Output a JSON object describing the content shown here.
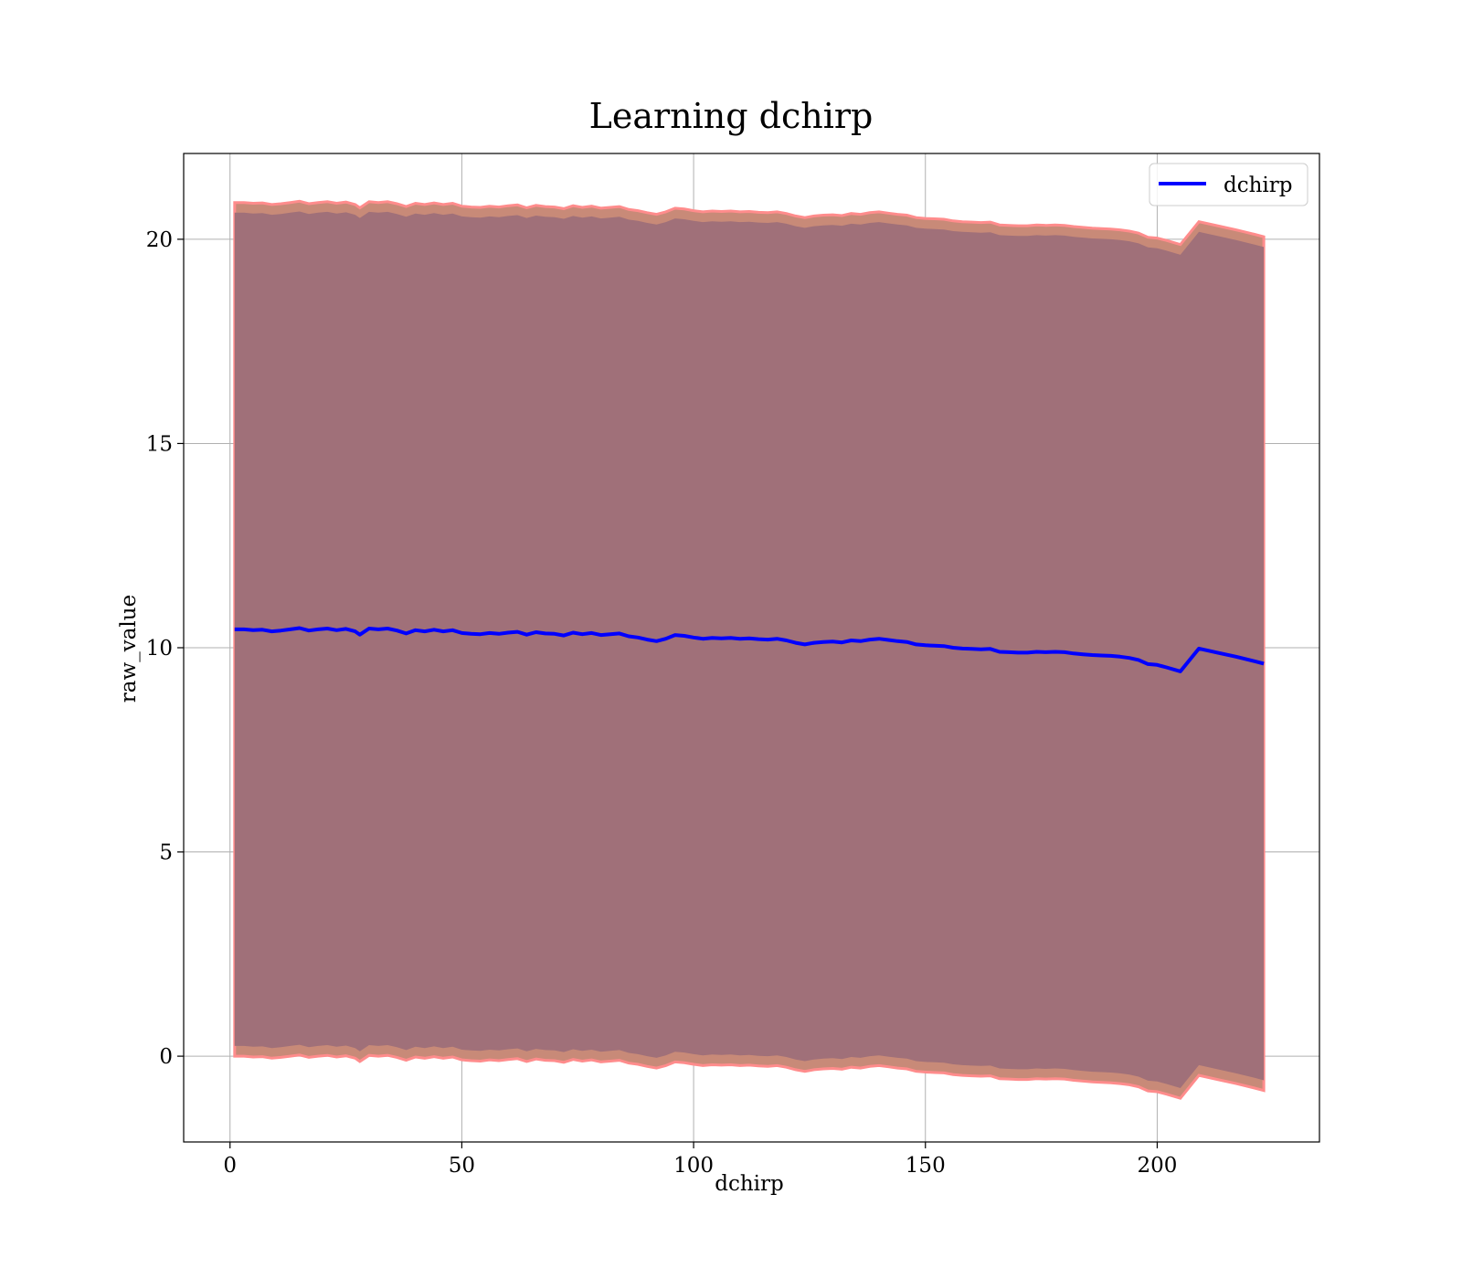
{
  "chart_data": {
    "type": "line",
    "title": "Learning dchirp",
    "xlabel": "dchirp",
    "ylabel": "raw_value",
    "xlim": [
      -10,
      235
    ],
    "ylim": [
      -2.1,
      22.1
    ],
    "xticks": [
      0,
      50,
      100,
      150,
      200
    ],
    "yticks": [
      0,
      5,
      10,
      15,
      20
    ],
    "grid": true,
    "legend_position": "top-right",
    "colors": {
      "line": "#0000ff",
      "inner_band": "#6e2d42",
      "outer_band": "#ff6a6a",
      "band_edge": "#ff8c8c"
    },
    "series": [
      {
        "name": "dchirp",
        "x": [
          1,
          3,
          5,
          7,
          9,
          11,
          13,
          15,
          17,
          19,
          21,
          23,
          25,
          27,
          28,
          30,
          32,
          34,
          36,
          38,
          40,
          42,
          44,
          46,
          48,
          50,
          52,
          54,
          56,
          58,
          60,
          62,
          64,
          66,
          68,
          70,
          72,
          74,
          76,
          78,
          80,
          82,
          84,
          86,
          88,
          90,
          92,
          94,
          96,
          98,
          100,
          102,
          104,
          106,
          108,
          110,
          112,
          114,
          116,
          118,
          120,
          122,
          124,
          126,
          128,
          130,
          132,
          134,
          136,
          138,
          140,
          142,
          144,
          146,
          148,
          150,
          152,
          154,
          156,
          158,
          160,
          162,
          164,
          166,
          168,
          170,
          172,
          174,
          176,
          178,
          180,
          182,
          184,
          186,
          188,
          190,
          192,
          194,
          196,
          198,
          200,
          202,
          205,
          209,
          213,
          217,
          221,
          223
        ],
        "values": [
          10.45,
          10.45,
          10.43,
          10.44,
          10.4,
          10.42,
          10.45,
          10.48,
          10.42,
          10.45,
          10.47,
          10.43,
          10.46,
          10.4,
          10.32,
          10.47,
          10.45,
          10.47,
          10.42,
          10.35,
          10.43,
          10.4,
          10.44,
          10.4,
          10.43,
          10.36,
          10.34,
          10.33,
          10.36,
          10.34,
          10.37,
          10.39,
          10.32,
          10.38,
          10.35,
          10.34,
          10.3,
          10.37,
          10.33,
          10.36,
          10.31,
          10.33,
          10.35,
          10.28,
          10.25,
          10.2,
          10.16,
          10.22,
          10.31,
          10.29,
          10.25,
          10.22,
          10.24,
          10.23,
          10.24,
          10.22,
          10.23,
          10.21,
          10.2,
          10.22,
          10.18,
          10.12,
          10.08,
          10.12,
          10.14,
          10.15,
          10.13,
          10.18,
          10.16,
          10.2,
          10.22,
          10.19,
          10.16,
          10.14,
          10.08,
          10.06,
          10.05,
          10.04,
          10.0,
          9.98,
          9.97,
          9.96,
          9.97,
          9.9,
          9.89,
          9.88,
          9.88,
          9.9,
          9.89,
          9.9,
          9.89,
          9.86,
          9.84,
          9.82,
          9.81,
          9.8,
          9.78,
          9.75,
          9.7,
          9.6,
          9.58,
          9.52,
          9.42,
          9.98,
          9.88,
          9.78,
          9.67,
          9.61
        ],
        "band_inner_halfwidth": 10.2,
        "band_outer_halfwidth": 10.45
      }
    ]
  }
}
